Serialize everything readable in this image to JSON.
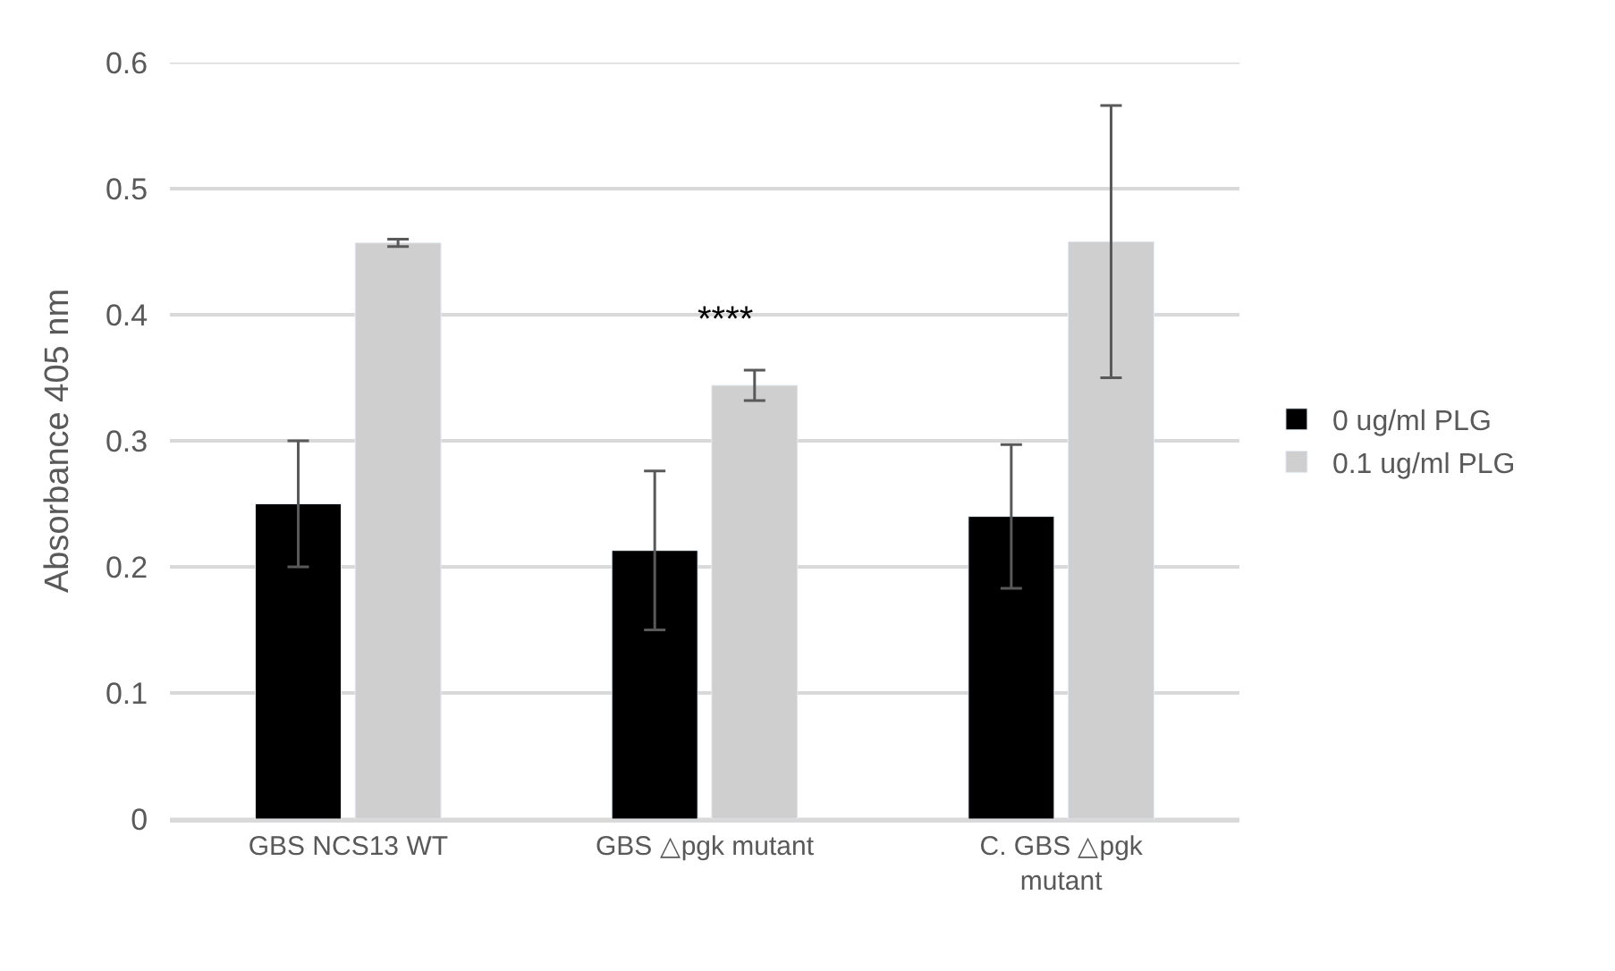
{
  "chart_data": {
    "type": "bar",
    "ylabel": "Absorbance 405 nm",
    "categories": [
      "GBS NCS13 WT",
      "GBS △pgk mutant",
      "C. GBS △pgk mutant"
    ],
    "series": [
      {
        "name": "0 ug/ml PLG",
        "color": "#000000",
        "values": [
          0.25,
          0.213,
          0.24
        ],
        "errors": [
          0.05,
          0.063,
          0.057
        ]
      },
      {
        "name": "0.1 ug/ml PLG",
        "color": "#d0cfd0",
        "values": [
          0.457,
          0.344,
          0.458
        ],
        "errors": [
          0.003,
          0.012,
          0.108
        ]
      }
    ],
    "annotations": [
      "****"
    ],
    "ylim": [
      0,
      0.6
    ],
    "yticks": [
      0,
      0.1,
      0.2,
      0.3,
      0.4,
      0.5,
      0.6
    ],
    "grid": "y",
    "legend": "right"
  }
}
